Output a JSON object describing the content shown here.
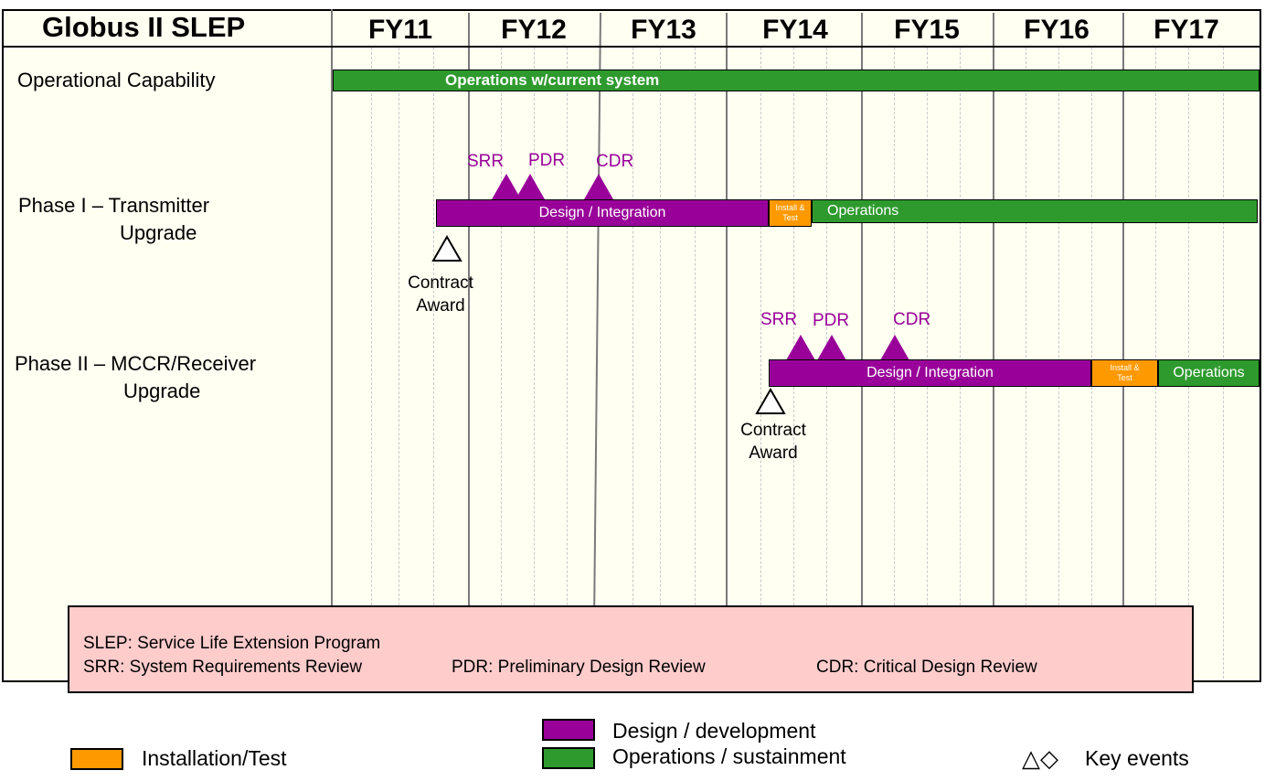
{
  "title": "Globus II SLEP",
  "years": [
    "FY11",
    "FY12",
    "FY13",
    "FY14",
    "FY15",
    "FY16",
    "FY17"
  ],
  "rows": {
    "operational": {
      "label": "Operational Capability",
      "bar_label": "Operations w/current system"
    },
    "phase1": {
      "label_line1": "Phase I – Transmitter",
      "label_line2": "Upgrade",
      "design_label": "Design / Integration",
      "install_label_line1": "Install &",
      "install_label_line2": "Test",
      "operations_label": "Operations",
      "milestones": [
        "SRR",
        "PDR",
        "CDR"
      ],
      "award_line1": "Contract",
      "award_line2": "Award"
    },
    "phase2": {
      "label_line1": "Phase II – MCCR/Receiver",
      "label_line2": "Upgrade",
      "design_label": "Design / Integration",
      "install_label_line1": "Install &",
      "install_label_line2": "Test",
      "operations_label": "Operations",
      "milestones": [
        "SRR",
        "PDR",
        "CDR"
      ],
      "award_line1": "Contract",
      "award_line2": "Award"
    }
  },
  "glossary": {
    "slep": "SLEP: Service Life Extension Program",
    "srr": "SRR:  System Requirements Review",
    "pdr": "PDR:  Preliminary Design Review",
    "cdr": "CDR: Critical Design Review"
  },
  "legend": {
    "installation": "Installation/Test",
    "design": "Design / development",
    "operations": "Operations / sustainment",
    "key_events": "Key events",
    "key_events_symbols": "△◇"
  },
  "colors": {
    "design": "#990099",
    "operations": "#2e9a2e",
    "installation": "#ff9900",
    "glossary_bg": "#ffcccc",
    "chart_bg": "#fffff2"
  }
}
